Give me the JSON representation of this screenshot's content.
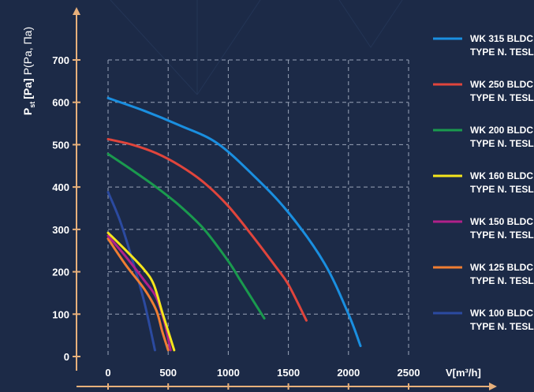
{
  "chart_data": {
    "type": "line",
    "ylabel_main": "P",
    "ylabel_sub": "st",
    "ylabel_unit": "[Pa]",
    "ylabel_extra": "P(Pa, Па)",
    "xlabel": "V[m³/h]",
    "xlim": [
      0,
      2500
    ],
    "ylim": [
      0,
      700
    ],
    "x_ticks": [
      "0",
      "500",
      "1000",
      "1500",
      "2000",
      "2500"
    ],
    "y_ticks": [
      "0",
      "100",
      "200",
      "300",
      "400",
      "500",
      "600",
      "700"
    ],
    "grid": true,
    "legend_position": "right",
    "series": [
      {
        "name": "WK 315 BLDC",
        "subname": "TYPE N. TESLA",
        "color": "#1a8fe0",
        "x": [
          0,
          300,
          600,
          900,
          1200,
          1500,
          1800,
          2000,
          2100
        ],
        "y": [
          610,
          580,
          545,
          505,
          430,
          340,
          220,
          100,
          25
        ]
      },
      {
        "name": "WK 250 BLDC",
        "subname": "TYPE N. TESLA",
        "color": "#e0453c",
        "x": [
          0,
          200,
          400,
          600,
          800,
          1000,
          1200,
          1400,
          1500,
          1650
        ],
        "y": [
          513,
          500,
          480,
          450,
          410,
          355,
          285,
          210,
          170,
          85
        ]
      },
      {
        "name": "WK 200 BLDC",
        "subname": "TYPE N. TESLA",
        "color": "#1a9a4e",
        "x": [
          0,
          200,
          400,
          600,
          800,
          1000,
          1100,
          1200,
          1300
        ],
        "y": [
          478,
          440,
          400,
          355,
          300,
          225,
          180,
          135,
          90
        ]
      },
      {
        "name": "WK 160 BLDC",
        "subname": "TYPE N. TESLA",
        "color": "#f5e51c",
        "x": [
          0,
          150,
          300,
          380,
          450,
          500,
          550
        ],
        "y": [
          292,
          250,
          205,
          170,
          105,
          60,
          15
        ]
      },
      {
        "name": "WK 150 BLDC",
        "subname": "TYPE N. TESLA",
        "color": "#b0208a",
        "x": [
          0,
          150,
          300,
          400,
          470,
          520
        ],
        "y": [
          285,
          235,
          180,
          140,
          80,
          15
        ]
      },
      {
        "name": "WK 125 BLDC",
        "subname": "TYPE N. TESLA",
        "color": "#f07d32",
        "x": [
          0,
          150,
          300,
          400,
          450,
          500
        ],
        "y": [
          278,
          215,
          160,
          110,
          60,
          15
        ]
      },
      {
        "name": "WK 100 BLDC",
        "subname": "TYPE N. TESLA",
        "color": "#2b4aa0",
        "x": [
          0,
          100,
          200,
          300,
          390
        ],
        "y": [
          388,
          320,
          230,
          130,
          15
        ]
      }
    ]
  }
}
